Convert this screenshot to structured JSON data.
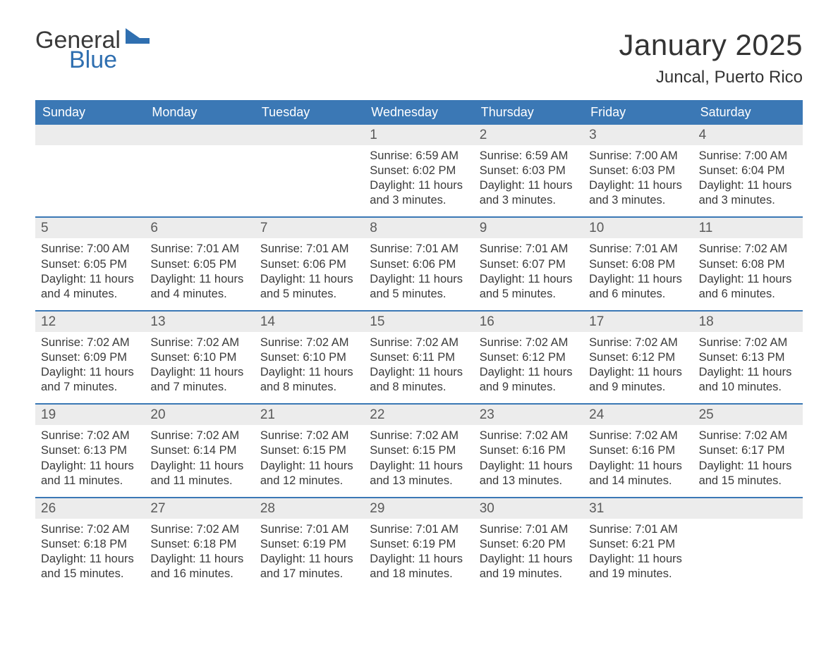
{
  "logo": {
    "text1": "General",
    "text2": "Blue",
    "color_general": "#3a3a3a",
    "color_blue": "#2f6fb0",
    "flag_color": "#2f6fb0"
  },
  "title": "January 2025",
  "location": "Juncal, Puerto Rico",
  "colors": {
    "header_bg": "#3b78b5",
    "header_text": "#ffffff",
    "band_bg": "#ececec",
    "text": "#3a3a3a",
    "rule": "#3b78b5",
    "page_bg": "#ffffff"
  },
  "days_of_week": [
    "Sunday",
    "Monday",
    "Tuesday",
    "Wednesday",
    "Thursday",
    "Friday",
    "Saturday"
  ],
  "weeks": [
    [
      {
        "n": "",
        "empty": true
      },
      {
        "n": "",
        "empty": true
      },
      {
        "n": "",
        "empty": true
      },
      {
        "n": "1",
        "sunrise": "Sunrise: 6:59 AM",
        "sunset": "Sunset: 6:02 PM",
        "day1": "Daylight: 11 hours",
        "day2": "and 3 minutes."
      },
      {
        "n": "2",
        "sunrise": "Sunrise: 6:59 AM",
        "sunset": "Sunset: 6:03 PM",
        "day1": "Daylight: 11 hours",
        "day2": "and 3 minutes."
      },
      {
        "n": "3",
        "sunrise": "Sunrise: 7:00 AM",
        "sunset": "Sunset: 6:03 PM",
        "day1": "Daylight: 11 hours",
        "day2": "and 3 minutes."
      },
      {
        "n": "4",
        "sunrise": "Sunrise: 7:00 AM",
        "sunset": "Sunset: 6:04 PM",
        "day1": "Daylight: 11 hours",
        "day2": "and 3 minutes."
      }
    ],
    [
      {
        "n": "5",
        "sunrise": "Sunrise: 7:00 AM",
        "sunset": "Sunset: 6:05 PM",
        "day1": "Daylight: 11 hours",
        "day2": "and 4 minutes."
      },
      {
        "n": "6",
        "sunrise": "Sunrise: 7:01 AM",
        "sunset": "Sunset: 6:05 PM",
        "day1": "Daylight: 11 hours",
        "day2": "and 4 minutes."
      },
      {
        "n": "7",
        "sunrise": "Sunrise: 7:01 AM",
        "sunset": "Sunset: 6:06 PM",
        "day1": "Daylight: 11 hours",
        "day2": "and 5 minutes."
      },
      {
        "n": "8",
        "sunrise": "Sunrise: 7:01 AM",
        "sunset": "Sunset: 6:06 PM",
        "day1": "Daylight: 11 hours",
        "day2": "and 5 minutes."
      },
      {
        "n": "9",
        "sunrise": "Sunrise: 7:01 AM",
        "sunset": "Sunset: 6:07 PM",
        "day1": "Daylight: 11 hours",
        "day2": "and 5 minutes."
      },
      {
        "n": "10",
        "sunrise": "Sunrise: 7:01 AM",
        "sunset": "Sunset: 6:08 PM",
        "day1": "Daylight: 11 hours",
        "day2": "and 6 minutes."
      },
      {
        "n": "11",
        "sunrise": "Sunrise: 7:02 AM",
        "sunset": "Sunset: 6:08 PM",
        "day1": "Daylight: 11 hours",
        "day2": "and 6 minutes."
      }
    ],
    [
      {
        "n": "12",
        "sunrise": "Sunrise: 7:02 AM",
        "sunset": "Sunset: 6:09 PM",
        "day1": "Daylight: 11 hours",
        "day2": "and 7 minutes."
      },
      {
        "n": "13",
        "sunrise": "Sunrise: 7:02 AM",
        "sunset": "Sunset: 6:10 PM",
        "day1": "Daylight: 11 hours",
        "day2": "and 7 minutes."
      },
      {
        "n": "14",
        "sunrise": "Sunrise: 7:02 AM",
        "sunset": "Sunset: 6:10 PM",
        "day1": "Daylight: 11 hours",
        "day2": "and 8 minutes."
      },
      {
        "n": "15",
        "sunrise": "Sunrise: 7:02 AM",
        "sunset": "Sunset: 6:11 PM",
        "day1": "Daylight: 11 hours",
        "day2": "and 8 minutes."
      },
      {
        "n": "16",
        "sunrise": "Sunrise: 7:02 AM",
        "sunset": "Sunset: 6:12 PM",
        "day1": "Daylight: 11 hours",
        "day2": "and 9 minutes."
      },
      {
        "n": "17",
        "sunrise": "Sunrise: 7:02 AM",
        "sunset": "Sunset: 6:12 PM",
        "day1": "Daylight: 11 hours",
        "day2": "and 9 minutes."
      },
      {
        "n": "18",
        "sunrise": "Sunrise: 7:02 AM",
        "sunset": "Sunset: 6:13 PM",
        "day1": "Daylight: 11 hours",
        "day2": "and 10 minutes."
      }
    ],
    [
      {
        "n": "19",
        "sunrise": "Sunrise: 7:02 AM",
        "sunset": "Sunset: 6:13 PM",
        "day1": "Daylight: 11 hours",
        "day2": "and 11 minutes."
      },
      {
        "n": "20",
        "sunrise": "Sunrise: 7:02 AM",
        "sunset": "Sunset: 6:14 PM",
        "day1": "Daylight: 11 hours",
        "day2": "and 11 minutes."
      },
      {
        "n": "21",
        "sunrise": "Sunrise: 7:02 AM",
        "sunset": "Sunset: 6:15 PM",
        "day1": "Daylight: 11 hours",
        "day2": "and 12 minutes."
      },
      {
        "n": "22",
        "sunrise": "Sunrise: 7:02 AM",
        "sunset": "Sunset: 6:15 PM",
        "day1": "Daylight: 11 hours",
        "day2": "and 13 minutes."
      },
      {
        "n": "23",
        "sunrise": "Sunrise: 7:02 AM",
        "sunset": "Sunset: 6:16 PM",
        "day1": "Daylight: 11 hours",
        "day2": "and 13 minutes."
      },
      {
        "n": "24",
        "sunrise": "Sunrise: 7:02 AM",
        "sunset": "Sunset: 6:16 PM",
        "day1": "Daylight: 11 hours",
        "day2": "and 14 minutes."
      },
      {
        "n": "25",
        "sunrise": "Sunrise: 7:02 AM",
        "sunset": "Sunset: 6:17 PM",
        "day1": "Daylight: 11 hours",
        "day2": "and 15 minutes."
      }
    ],
    [
      {
        "n": "26",
        "sunrise": "Sunrise: 7:02 AM",
        "sunset": "Sunset: 6:18 PM",
        "day1": "Daylight: 11 hours",
        "day2": "and 15 minutes."
      },
      {
        "n": "27",
        "sunrise": "Sunrise: 7:02 AM",
        "sunset": "Sunset: 6:18 PM",
        "day1": "Daylight: 11 hours",
        "day2": "and 16 minutes."
      },
      {
        "n": "28",
        "sunrise": "Sunrise: 7:01 AM",
        "sunset": "Sunset: 6:19 PM",
        "day1": "Daylight: 11 hours",
        "day2": "and 17 minutes."
      },
      {
        "n": "29",
        "sunrise": "Sunrise: 7:01 AM",
        "sunset": "Sunset: 6:19 PM",
        "day1": "Daylight: 11 hours",
        "day2": "and 18 minutes."
      },
      {
        "n": "30",
        "sunrise": "Sunrise: 7:01 AM",
        "sunset": "Sunset: 6:20 PM",
        "day1": "Daylight: 11 hours",
        "day2": "and 19 minutes."
      },
      {
        "n": "31",
        "sunrise": "Sunrise: 7:01 AM",
        "sunset": "Sunset: 6:21 PM",
        "day1": "Daylight: 11 hours",
        "day2": "and 19 minutes."
      },
      {
        "n": "",
        "empty": true
      }
    ]
  ]
}
